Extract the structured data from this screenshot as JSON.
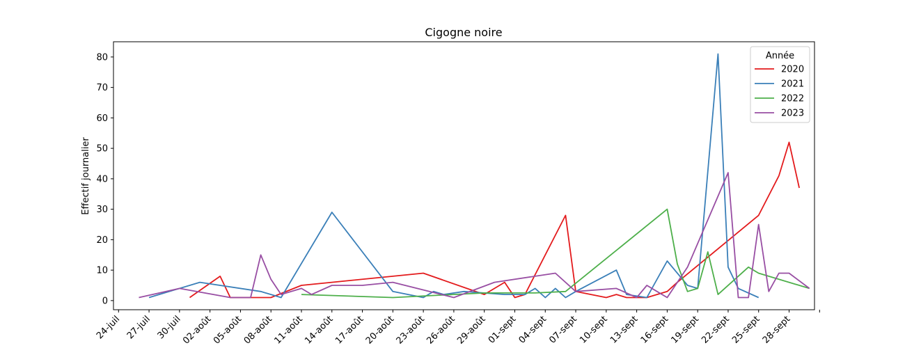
{
  "chart_data": {
    "type": "line",
    "title": "Cigogne noire",
    "xlabel": "",
    "ylabel": "Effectif journalier",
    "ylim": [
      -3,
      85
    ],
    "xlim": [
      "2023-07-24",
      "2023-09-30"
    ],
    "x_tick_labels": [
      "24-juil",
      "27-juil",
      "30-juil",
      "02-août",
      "05-août",
      "08-août",
      "11-août",
      "14-août",
      "17-août",
      "20-août",
      "23-août",
      "26-août",
      "29-août",
      "01-sept",
      "04-sept",
      "07-sept",
      "10-sept",
      "13-sept",
      "16-sept",
      "19-sept",
      "22-sept",
      "25-sept",
      "28-sept",
      ""
    ],
    "y_ticks": [
      0,
      10,
      20,
      30,
      40,
      50,
      60,
      70,
      80
    ],
    "legend": {
      "title": "Année",
      "position": "top-right"
    },
    "series": [
      {
        "name": "2020",
        "color": "#e31a1c",
        "points": [
          [
            "2023-07-31",
            1
          ],
          [
            "2023-08-03",
            8
          ],
          [
            "2023-08-04",
            1
          ],
          [
            "2023-08-05",
            1
          ],
          [
            "2023-08-08",
            1
          ],
          [
            "2023-08-11",
            5
          ],
          [
            "2023-08-14",
            6
          ],
          [
            "2023-08-20",
            8
          ],
          [
            "2023-08-23",
            9
          ],
          [
            "2023-08-29",
            2
          ],
          [
            "2023-08-31",
            6
          ],
          [
            "2023-09-01",
            1
          ],
          [
            "2023-09-02",
            2
          ],
          [
            "2023-09-06",
            28
          ],
          [
            "2023-09-07",
            3
          ],
          [
            "2023-09-10",
            1
          ],
          [
            "2023-09-11",
            2
          ],
          [
            "2023-09-12",
            1
          ],
          [
            "2023-09-14",
            1
          ],
          [
            "2023-09-16",
            3
          ],
          [
            "2023-09-17",
            6
          ],
          [
            "2023-09-25",
            28
          ],
          [
            "2023-09-27",
            41
          ],
          [
            "2023-09-28",
            52
          ],
          [
            "2023-09-29",
            37
          ]
        ]
      },
      {
        "name": "2021",
        "color": "#3a7fb8",
        "points": [
          [
            "2023-07-27",
            1
          ],
          [
            "2023-08-01",
            6
          ],
          [
            "2023-08-07",
            3
          ],
          [
            "2023-08-09",
            1
          ],
          [
            "2023-08-14",
            29
          ],
          [
            "2023-08-20",
            3
          ],
          [
            "2023-08-23",
            1
          ],
          [
            "2023-08-24",
            3
          ],
          [
            "2023-08-25",
            2
          ],
          [
            "2023-08-27",
            3
          ],
          [
            "2023-08-31",
            2
          ],
          [
            "2023-09-02",
            2
          ],
          [
            "2023-09-03",
            4
          ],
          [
            "2023-09-04",
            1
          ],
          [
            "2023-09-05",
            4
          ],
          [
            "2023-09-06",
            1
          ],
          [
            "2023-09-07",
            3
          ],
          [
            "2023-09-11",
            10
          ],
          [
            "2023-09-12",
            2
          ],
          [
            "2023-09-14",
            1
          ],
          [
            "2023-09-16",
            13
          ],
          [
            "2023-09-18",
            5
          ],
          [
            "2023-09-19",
            4
          ],
          [
            "2023-09-21",
            81
          ],
          [
            "2023-09-22",
            11
          ],
          [
            "2023-09-23",
            4
          ],
          [
            "2023-09-25",
            1
          ]
        ]
      },
      {
        "name": "2022",
        "color": "#4daf4a",
        "points": [
          [
            "2023-08-11",
            2
          ],
          [
            "2023-08-20",
            1
          ],
          [
            "2023-08-26",
            2
          ],
          [
            "2023-08-29",
            2.5
          ],
          [
            "2023-09-01",
            2.5
          ],
          [
            "2023-09-03",
            2.5
          ],
          [
            "2023-09-06",
            3
          ],
          [
            "2023-09-16",
            30
          ],
          [
            "2023-09-17",
            12
          ],
          [
            "2023-09-18",
            3
          ],
          [
            "2023-09-19",
            4
          ],
          [
            "2023-09-20",
            16
          ],
          [
            "2023-09-21",
            2
          ],
          [
            "2023-09-24",
            11
          ],
          [
            "2023-09-25",
            9
          ],
          [
            "2023-09-30",
            4
          ]
        ]
      },
      {
        "name": "2023",
        "color": "#984ea3",
        "points": [
          [
            "2023-07-26",
            1
          ],
          [
            "2023-07-30",
            4
          ],
          [
            "2023-08-04",
            1
          ],
          [
            "2023-08-06",
            1
          ],
          [
            "2023-08-07",
            15
          ],
          [
            "2023-08-08",
            7
          ],
          [
            "2023-08-09",
            2
          ],
          [
            "2023-08-11",
            4
          ],
          [
            "2023-08-12",
            2
          ],
          [
            "2023-08-14",
            5
          ],
          [
            "2023-08-17",
            5
          ],
          [
            "2023-08-20",
            6
          ],
          [
            "2023-08-26",
            1
          ],
          [
            "2023-08-30",
            6
          ],
          [
            "2023-09-05",
            9
          ],
          [
            "2023-09-07",
            3
          ],
          [
            "2023-09-11",
            4
          ],
          [
            "2023-09-13",
            1
          ],
          [
            "2023-09-14",
            5
          ],
          [
            "2023-09-15",
            3
          ],
          [
            "2023-09-16",
            1
          ],
          [
            "2023-09-18",
            11
          ],
          [
            "2023-09-22",
            42
          ],
          [
            "2023-09-23",
            1
          ],
          [
            "2023-09-24",
            1
          ],
          [
            "2023-09-25",
            25
          ],
          [
            "2023-09-26",
            3
          ],
          [
            "2023-09-27",
            9
          ],
          [
            "2023-09-28",
            9
          ],
          [
            "2023-09-30",
            4
          ]
        ]
      }
    ]
  }
}
